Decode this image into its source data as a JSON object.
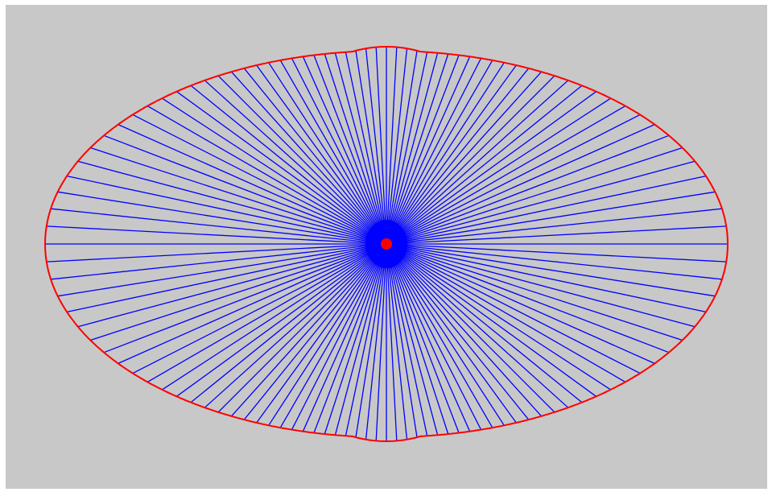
{
  "diagram": {
    "type": "radial-ray-fan",
    "description_visible_text": "",
    "colors": {
      "page_background": "#ffffff",
      "canvas_background": "#c8c8c8",
      "ray_color": "#0000ff",
      "outline_color": "#ff0000",
      "center_marker_color": "#ff0000"
    },
    "ray_count": 120,
    "shape": "ellipse-with-top-and-bottom-bulges"
  }
}
